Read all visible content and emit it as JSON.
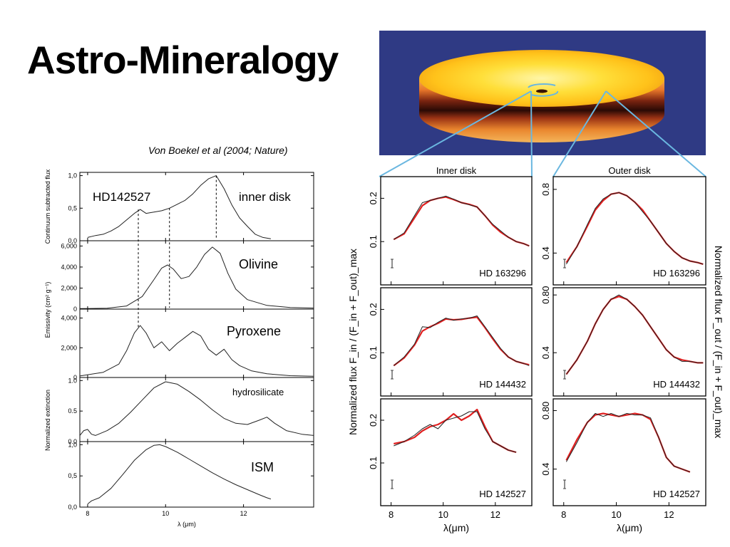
{
  "slide": {
    "title": "Astro-Mineralogy",
    "citation": "Von Boekel et al (2004; Nature)"
  },
  "colors": {
    "model": "#e02020",
    "observed": "#222222",
    "link_lines": "#6ab7e0",
    "disk_bg": "#2f3a84"
  },
  "chart_data": [
    {
      "type": "line",
      "panel": "HD142527 continuum",
      "label": "HD142527",
      "annotation": "inner disk",
      "ylabel": "Continuum subtracted flux",
      "xlim": [
        7.8,
        13.8
      ],
      "ylim": [
        0,
        1.05
      ],
      "yticks": [
        "0,0",
        "0,5",
        "1,0"
      ],
      "vlines": [
        9.3,
        10.1,
        11.3
      ],
      "x": [
        8.0,
        8.2,
        8.4,
        8.6,
        8.8,
        9.0,
        9.2,
        9.35,
        9.5,
        9.7,
        9.9,
        10.1,
        10.3,
        10.5,
        10.7,
        10.9,
        11.1,
        11.3,
        11.5,
        11.7,
        11.9,
        12.1,
        12.3,
        12.5,
        12.7
      ],
      "values": [
        0.05,
        0.08,
        0.1,
        0.15,
        0.22,
        0.32,
        0.42,
        0.48,
        0.42,
        0.44,
        0.46,
        0.5,
        0.56,
        0.62,
        0.72,
        0.85,
        0.95,
        1.0,
        0.8,
        0.55,
        0.35,
        0.22,
        0.1,
        0.05,
        0.03
      ]
    },
    {
      "type": "line",
      "panel": "Olivine",
      "label": "Olivine",
      "ylabel": "Emissivity (cm² g⁻¹)",
      "xlim": [
        7.8,
        13.8
      ],
      "ylim": [
        0,
        6500
      ],
      "yticks": [
        "0",
        "2,000",
        "4,000",
        "6,000"
      ],
      "x": [
        7.8,
        8.5,
        9.0,
        9.4,
        9.7,
        9.9,
        10.05,
        10.2,
        10.4,
        10.6,
        10.8,
        11.0,
        11.2,
        11.4,
        11.6,
        11.8,
        12.1,
        12.6,
        13.2,
        13.8
      ],
      "values": [
        50,
        80,
        300,
        1200,
        2800,
        3900,
        4200,
        3800,
        2900,
        3100,
        4000,
        5200,
        5900,
        5300,
        3400,
        1900,
        900,
        350,
        150,
        100
      ]
    },
    {
      "type": "line",
      "panel": "Pyroxene",
      "label": "Pyroxene",
      "ylabel": "Emissivity (cm² g⁻¹)",
      "xlim": [
        7.8,
        13.8
      ],
      "ylim": [
        0,
        4600
      ],
      "yticks": [
        "0",
        "2,000",
        "4,000"
      ],
      "x": [
        7.8,
        8.4,
        8.8,
        9.0,
        9.2,
        9.35,
        9.5,
        9.7,
        9.9,
        10.1,
        10.3,
        10.5,
        10.7,
        10.9,
        11.1,
        11.3,
        11.5,
        11.7,
        11.9,
        12.2,
        12.6,
        13.2,
        13.8
      ],
      "values": [
        100,
        350,
        900,
        1800,
        3000,
        3500,
        3000,
        2000,
        2400,
        1800,
        2300,
        2700,
        3100,
        2800,
        1900,
        1500,
        1900,
        1200,
        800,
        450,
        250,
        120,
        80
      ]
    },
    {
      "type": "line",
      "panel": "hydrosilicate",
      "label": "hydrosilicate",
      "ylabel": "Normalized extinction",
      "xlim": [
        7.8,
        13.8
      ],
      "ylim": [
        0,
        1.05
      ],
      "yticks": [
        "0.0",
        "0.5",
        "1.0"
      ],
      "x": [
        7.8,
        7.9,
        8.0,
        8.1,
        8.2,
        8.5,
        8.8,
        9.1,
        9.4,
        9.7,
        10.0,
        10.3,
        10.6,
        10.9,
        11.2,
        11.5,
        11.8,
        12.1,
        12.4,
        12.6,
        12.8,
        13.1,
        13.5,
        13.8
      ],
      "values": [
        0.1,
        0.18,
        0.2,
        0.12,
        0.1,
        0.18,
        0.3,
        0.48,
        0.68,
        0.88,
        0.98,
        0.94,
        0.82,
        0.68,
        0.52,
        0.38,
        0.3,
        0.28,
        0.35,
        0.4,
        0.3,
        0.18,
        0.12,
        0.1
      ]
    },
    {
      "type": "line",
      "panel": "ISM",
      "label": "ISM",
      "xlabel": "λ (μm)",
      "xlim": [
        7.8,
        13.8
      ],
      "ylim": [
        0,
        1.05
      ],
      "yticks": [
        "0,0",
        "0,5",
        "1,0"
      ],
      "xticks": [
        "8",
        "10",
        "12"
      ],
      "x": [
        8.0,
        8.1,
        8.3,
        8.6,
        8.9,
        9.2,
        9.5,
        9.7,
        9.85,
        10.0,
        10.3,
        10.6,
        10.9,
        11.2,
        11.5,
        11.8,
        12.1,
        12.4,
        12.6,
        12.7
      ],
      "values": [
        0.05,
        0.1,
        0.15,
        0.3,
        0.52,
        0.75,
        0.92,
        0.99,
        1.0,
        0.97,
        0.88,
        0.77,
        0.66,
        0.55,
        0.45,
        0.36,
        0.28,
        0.2,
        0.15,
        0.13
      ]
    },
    {
      "type": "line",
      "panel": "Inner disk",
      "column_title": "Inner disk",
      "ylabel": "Normalized flux F_in / (F_in + F_out)_max",
      "xlabel": "λ(μm)",
      "xticks": [
        "8",
        "10",
        "12"
      ],
      "xlim": [
        7.6,
        13.4
      ],
      "rows": [
        {
          "star": "HD 163296",
          "ylim": [
            0.0,
            0.25
          ],
          "yticks": [
            "0.1",
            "0.2"
          ],
          "x": [
            8.1,
            8.5,
            8.9,
            9.2,
            9.5,
            9.8,
            10.1,
            10.4,
            10.7,
            11.0,
            11.3,
            11.6,
            11.9,
            12.2,
            12.5,
            12.8,
            13.1,
            13.3
          ],
          "observed": [
            0.105,
            0.12,
            0.16,
            0.19,
            0.195,
            0.2,
            0.205,
            0.198,
            0.19,
            0.185,
            0.18,
            0.16,
            0.14,
            0.125,
            0.11,
            0.1,
            0.095,
            0.09
          ],
          "model": [
            0.105,
            0.118,
            0.155,
            0.183,
            0.195,
            0.2,
            0.203,
            0.197,
            0.19,
            0.186,
            0.18,
            0.16,
            0.138,
            0.122,
            0.11,
            0.1,
            0.095,
            0.09
          ]
        },
        {
          "star": "HD 144432",
          "ylim": [
            0.0,
            0.25
          ],
          "yticks": [
            "0.1",
            "0.2"
          ],
          "x": [
            8.1,
            8.5,
            8.9,
            9.2,
            9.5,
            9.8,
            10.1,
            10.4,
            10.7,
            11.0,
            11.3,
            11.6,
            11.9,
            12.2,
            12.5,
            12.8,
            13.1,
            13.3
          ],
          "observed": [
            0.07,
            0.09,
            0.12,
            0.16,
            0.158,
            0.17,
            0.18,
            0.175,
            0.178,
            0.18,
            0.185,
            0.16,
            0.135,
            0.11,
            0.09,
            0.08,
            0.075,
            0.07
          ],
          "model": [
            0.07,
            0.088,
            0.118,
            0.15,
            0.16,
            0.168,
            0.178,
            0.176,
            0.177,
            0.18,
            0.182,
            0.158,
            0.132,
            0.108,
            0.09,
            0.08,
            0.075,
            0.072
          ]
        },
        {
          "star": "HD 142527",
          "ylim": [
            0.0,
            0.25
          ],
          "yticks": [
            "0.1",
            "0.2"
          ],
          "x": [
            8.1,
            8.5,
            8.9,
            9.2,
            9.5,
            9.8,
            10.1,
            10.4,
            10.7,
            11.0,
            11.3,
            11.6,
            11.9,
            12.2,
            12.5,
            12.8
          ],
          "observed": [
            0.14,
            0.15,
            0.165,
            0.18,
            0.19,
            0.18,
            0.2,
            0.205,
            0.21,
            0.22,
            0.22,
            0.18,
            0.15,
            0.14,
            0.13,
            0.125
          ],
          "model": [
            0.145,
            0.15,
            0.16,
            0.175,
            0.185,
            0.19,
            0.2,
            0.215,
            0.2,
            0.21,
            0.225,
            0.185,
            0.15,
            0.14,
            0.13,
            0.125
          ]
        }
      ]
    },
    {
      "type": "line",
      "panel": "Outer disk",
      "column_title": "Outer disk",
      "ylabel": "Normalized flux F_out / (F_in + F_out)_max",
      "xlabel": "λ(μm)",
      "xticks": [
        "8",
        "10",
        "12"
      ],
      "xlim": [
        7.6,
        13.4
      ],
      "rows": [
        {
          "star": "HD 163296",
          "ylim": [
            0.2,
            0.88
          ],
          "yticks": [
            "0.4",
            "0.8"
          ],
          "x": [
            8.1,
            8.5,
            8.9,
            9.2,
            9.5,
            9.8,
            10.1,
            10.4,
            10.7,
            11.0,
            11.3,
            11.6,
            11.9,
            12.2,
            12.5,
            12.8,
            13.1,
            13.3
          ],
          "observed": [
            0.33,
            0.44,
            0.58,
            0.68,
            0.74,
            0.77,
            0.78,
            0.76,
            0.72,
            0.66,
            0.6,
            0.53,
            0.46,
            0.41,
            0.37,
            0.35,
            0.34,
            0.33
          ],
          "model": [
            0.34,
            0.44,
            0.57,
            0.67,
            0.73,
            0.77,
            0.78,
            0.76,
            0.72,
            0.67,
            0.6,
            0.53,
            0.46,
            0.41,
            0.37,
            0.35,
            0.34,
            0.33
          ]
        },
        {
          "star": "HD 144432",
          "ylim": [
            0.1,
            0.85
          ],
          "yticks": [
            "0.4",
            "0.80"
          ],
          "x": [
            8.1,
            8.5,
            8.9,
            9.2,
            9.5,
            9.8,
            10.1,
            10.4,
            10.7,
            11.0,
            11.3,
            11.6,
            11.9,
            12.2,
            12.5,
            12.8,
            13.1,
            13.3
          ],
          "observed": [
            0.25,
            0.35,
            0.48,
            0.6,
            0.7,
            0.77,
            0.8,
            0.77,
            0.72,
            0.66,
            0.58,
            0.5,
            0.42,
            0.37,
            0.34,
            0.34,
            0.33,
            0.33
          ],
          "model": [
            0.25,
            0.35,
            0.48,
            0.6,
            0.7,
            0.77,
            0.79,
            0.77,
            0.72,
            0.66,
            0.58,
            0.5,
            0.42,
            0.37,
            0.35,
            0.34,
            0.33,
            0.33
          ]
        },
        {
          "star": "HD 142527",
          "ylim": [
            0.15,
            0.88
          ],
          "yticks": [
            "0.4",
            "0.80"
          ],
          "x": [
            8.1,
            8.5,
            8.9,
            9.2,
            9.5,
            9.8,
            10.1,
            10.4,
            10.7,
            11.0,
            11.3,
            11.6,
            11.9,
            12.2,
            12.5,
            12.8
          ],
          "observed": [
            0.45,
            0.58,
            0.72,
            0.78,
            0.76,
            0.78,
            0.76,
            0.78,
            0.77,
            0.77,
            0.75,
            0.62,
            0.48,
            0.42,
            0.4,
            0.38
          ],
          "model": [
            0.46,
            0.6,
            0.72,
            0.77,
            0.78,
            0.77,
            0.76,
            0.77,
            0.78,
            0.77,
            0.74,
            0.62,
            0.48,
            0.42,
            0.4,
            0.38
          ]
        }
      ]
    }
  ]
}
